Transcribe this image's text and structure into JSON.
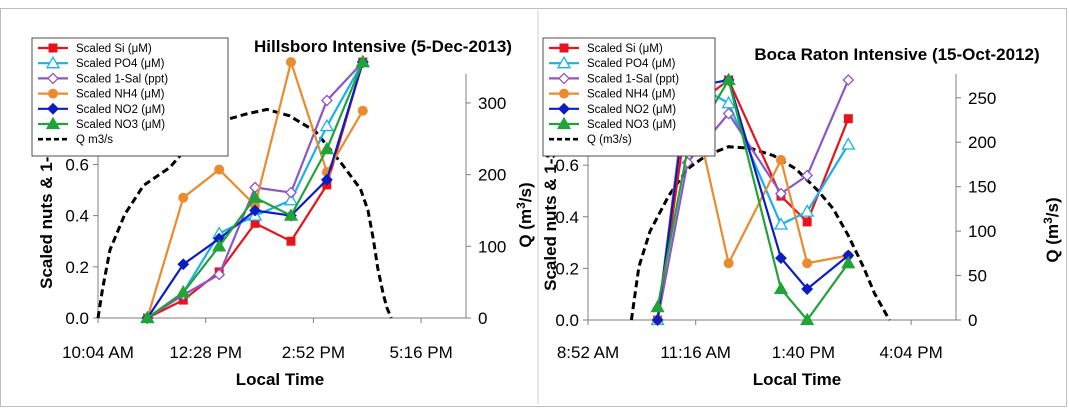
{
  "chart_data": [
    {
      "type": "line",
      "title": "Hillsboro Intensive (5-Dec-2013)",
      "xlabel": "Local Time",
      "ylabel": "Scaled nuts & 1-Sal",
      "y2label": "Q (m³/s)",
      "x_ticks": [
        "10:04 AM",
        "12:28 PM",
        "2:52 PM",
        "5:16 PM"
      ],
      "x_tick_minutes": [
        604,
        748,
        892,
        1036
      ],
      "xlim_minutes": [
        604,
        1096
      ],
      "y_ticks": [
        "0.0",
        "0.2",
        "0.4",
        "0.6"
      ],
      "ylim": [
        0,
        0.93
      ],
      "y2_ticks": [
        "0",
        "100",
        "200",
        "300"
      ],
      "y2lim": [
        0,
        332
      ],
      "x_minutes": [
        670,
        718,
        766,
        814,
        862,
        910,
        958
      ],
      "series": [
        {
          "name": "Scaled Si (μM)",
          "color": "#e8141b",
          "marker": "square",
          "values": [
            0.0,
            0.07,
            0.18,
            0.37,
            0.3,
            0.52,
            1.0
          ]
        },
        {
          "name": "Scaled PO4 (μM)",
          "color": "#1ab0ea",
          "marker": "triangle-open",
          "values": [
            0.0,
            0.1,
            0.33,
            0.4,
            0.46,
            0.75,
            1.0
          ]
        },
        {
          "name": "Scaled 1-Sal (ppt)",
          "color": "#8e55c8",
          "marker": "diamond-open",
          "values": [
            0.0,
            0.09,
            0.17,
            0.51,
            0.49,
            0.85,
            1.0
          ]
        },
        {
          "name": "Scaled NH4 (μM)",
          "color": "#ec8a2e",
          "marker": "circle",
          "values": [
            0.0,
            0.47,
            0.58,
            0.44,
            1.0,
            0.57,
            0.81
          ]
        },
        {
          "name": "Scaled NO2  (μM)",
          "color": "#0c1ec2",
          "marker": "diamond",
          "values": [
            0.0,
            0.21,
            0.31,
            0.42,
            0.4,
            0.54,
            1.0
          ]
        },
        {
          "name": "Scaled NO3  (μM)",
          "color": "#22a33a",
          "marker": "triangle",
          "values": [
            0.0,
            0.1,
            0.28,
            0.47,
            0.4,
            0.66,
            1.0
          ]
        }
      ],
      "q_series": {
        "name": "Q m3/s",
        "x_minutes": [
          604,
          610,
          620,
          640,
          665,
          700,
          725,
          745,
          770,
          800,
          830,
          860,
          895,
          930,
          955,
          965,
          972,
          978,
          985,
          990,
          996
        ],
        "values": [
          0,
          40,
          95,
          145,
          185,
          210,
          240,
          260,
          275,
          284,
          291,
          282,
          260,
          215,
          180,
          150,
          110,
          70,
          35,
          15,
          0
        ]
      }
    },
    {
      "type": "line",
      "title": "Boca Raton Intensive  (15-Oct-2012)",
      "xlabel": "Local Time",
      "ylabel": "Scaled nuts & 1-Sal",
      "y2label": "Q (m³/s)",
      "x_ticks": [
        "8:52 AM",
        "11:16 AM",
        "1:40 PM",
        "4:04 PM"
      ],
      "x_tick_minutes": [
        532,
        676,
        820,
        964
      ],
      "xlim_minutes": [
        532,
        1024
      ],
      "y_ticks": [
        "0.0",
        "0.2",
        "0.4",
        "0.6"
      ],
      "ylim": [
        0,
        0.93
      ],
      "y2_ticks": [
        "0",
        "50",
        "100",
        "150",
        "200",
        "250"
      ],
      "y2lim": [
        0,
        270
      ],
      "x_minutes": [
        625,
        665,
        720,
        790,
        825,
        880
      ],
      "series": [
        {
          "name": "Scaled Si (μM)",
          "color": "#e8141b",
          "marker": "square",
          "values": [
            0.0,
            0.81,
            0.93,
            0.48,
            0.38,
            0.78
          ]
        },
        {
          "name": "Scaled PO4 (μM)",
          "color": "#1ab0ea",
          "marker": "triangle-open",
          "values": [
            0.0,
            0.93,
            0.84,
            0.37,
            0.42,
            0.68
          ]
        },
        {
          "name": "Scaled 1-Sal (ppt)",
          "color": "#8e55c8",
          "marker": "diamond-open",
          "values": [
            0.0,
            0.61,
            0.8,
            0.49,
            0.56,
            0.93
          ]
        },
        {
          "name": "Scaled NH4 (μM)",
          "color": "#ec8a2e",
          "marker": "circle",
          "values": [
            0.0,
            0.93,
            0.22,
            0.62,
            0.22,
            0.25
          ]
        },
        {
          "name": "Scaled NO2  (μM)",
          "color": "#0c1ec2",
          "marker": "diamond",
          "values": [
            0.0,
            0.9,
            0.93,
            0.24,
            0.12,
            0.25
          ]
        },
        {
          "name": "Scaled NO3  (μM)",
          "color": "#22a33a",
          "marker": "triangle",
          "values": [
            0.05,
            0.66,
            0.93,
            0.12,
            0.0,
            0.22
          ]
        }
      ],
      "q_series": {
        "name": "Q (m3/s)",
        "x_minutes": [
          590,
          600,
          615,
          640,
          665,
          690,
          720,
          750,
          780,
          810,
          840,
          860,
          880,
          900,
          915,
          935
        ],
        "values": [
          0,
          60,
          100,
          140,
          170,
          185,
          195,
          193,
          185,
          170,
          145,
          125,
          95,
          60,
          30,
          0
        ]
      }
    }
  ]
}
